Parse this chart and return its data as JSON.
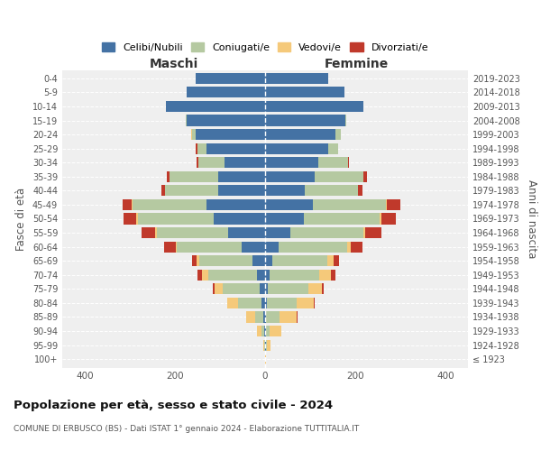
{
  "age_groups": [
    "100+",
    "95-99",
    "90-94",
    "85-89",
    "80-84",
    "75-79",
    "70-74",
    "65-69",
    "60-64",
    "55-59",
    "50-54",
    "45-49",
    "40-44",
    "35-39",
    "30-34",
    "25-29",
    "20-24",
    "15-19",
    "10-14",
    "5-9",
    "0-4"
  ],
  "birth_years": [
    "≤ 1923",
    "1924-1928",
    "1929-1933",
    "1934-1938",
    "1939-1943",
    "1944-1948",
    "1949-1953",
    "1954-1958",
    "1959-1963",
    "1964-1968",
    "1969-1973",
    "1974-1978",
    "1979-1983",
    "1984-1988",
    "1989-1993",
    "1994-1998",
    "1999-2003",
    "2004-2008",
    "2009-2013",
    "2014-2018",
    "2019-2023"
  ],
  "colors": {
    "celibi": "#4472a4",
    "coniugati": "#b5c9a1",
    "vedovi": "#f5c97a",
    "divorziati": "#c0392b"
  },
  "maschi": {
    "celibi": [
      0,
      1,
      2,
      5,
      8,
      12,
      18,
      28,
      52,
      82,
      115,
      130,
      105,
      105,
      90,
      130,
      155,
      175,
      220,
      175,
      155
    ],
    "coniugati": [
      0,
      1,
      6,
      18,
      52,
      82,
      108,
      118,
      145,
      158,
      168,
      165,
      118,
      108,
      58,
      20,
      8,
      2,
      0,
      0,
      0
    ],
    "vedovi": [
      0,
      2,
      10,
      20,
      25,
      18,
      14,
      6,
      2,
      5,
      4,
      2,
      0,
      0,
      0,
      0,
      2,
      0,
      0,
      0,
      0
    ],
    "divorziati": [
      0,
      0,
      0,
      0,
      0,
      5,
      10,
      10,
      25,
      30,
      28,
      20,
      8,
      5,
      5,
      5,
      0,
      0,
      0,
      0,
      0
    ]
  },
  "femmine": {
    "celibi": [
      0,
      1,
      2,
      2,
      4,
      5,
      10,
      15,
      30,
      55,
      85,
      105,
      88,
      110,
      118,
      140,
      155,
      178,
      218,
      175,
      140
    ],
    "coniugati": [
      0,
      2,
      8,
      30,
      65,
      90,
      110,
      122,
      152,
      162,
      168,
      162,
      118,
      108,
      65,
      22,
      12,
      2,
      0,
      0,
      0
    ],
    "vedovi": [
      2,
      8,
      25,
      38,
      38,
      30,
      25,
      15,
      8,
      5,
      5,
      2,
      0,
      0,
      0,
      0,
      0,
      0,
      0,
      0,
      0
    ],
    "divorziati": [
      0,
      0,
      0,
      2,
      2,
      5,
      10,
      12,
      25,
      35,
      32,
      30,
      10,
      8,
      2,
      0,
      0,
      0,
      0,
      0,
      0
    ]
  },
  "xlim": 450,
  "xticks": [
    -400,
    -200,
    0,
    200,
    400
  ],
  "title": "Popolazione per età, sesso e stato civile - 2024",
  "subtitle": "COMUNE DI ERBUSCO (BS) - Dati ISTAT 1° gennaio 2024 - Elaborazione TUTTITALIA.IT",
  "ylabel_left": "Fasce di età",
  "ylabel_right": "Anni di nascita",
  "xlabel_left": "Maschi",
  "xlabel_right": "Femmine",
  "legend_labels": [
    "Celibi/Nubili",
    "Coniugati/e",
    "Vedovi/e",
    "Divorziati/e"
  ],
  "legend_color_keys": [
    "celibi",
    "coniugati",
    "vedovi",
    "divorziati"
  ],
  "categories": [
    "celibi",
    "coniugati",
    "vedovi",
    "divorziati"
  ],
  "bg_color": "#efefef",
  "fig_bg": "#ffffff",
  "bar_height": 0.78
}
